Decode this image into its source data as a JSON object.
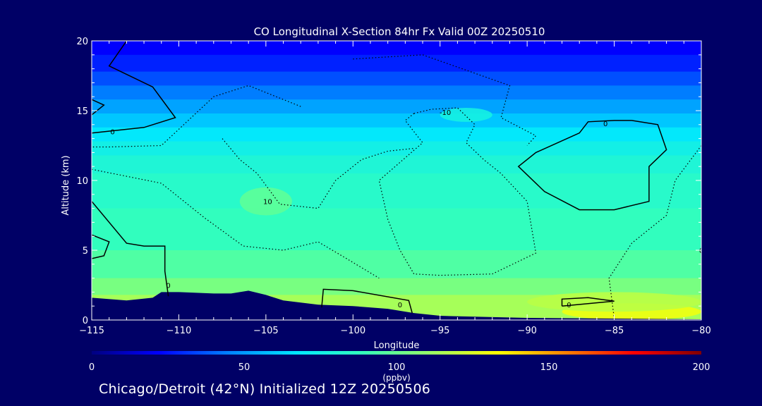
{
  "chart_data": {
    "type": "heatmap",
    "title": "CO Longitudinal X-Section 84hr  Fx Valid 00Z 20250510",
    "xlabel": "Longitude",
    "ylabel": "Altitude (km)",
    "xlim": [
      -115,
      -80
    ],
    "ylim": [
      0,
      20
    ],
    "x_ticks": [
      -115,
      -110,
      -105,
      -100,
      -95,
      -90,
      -85,
      -80
    ],
    "x_tick_labels": [
      "−115",
      "−110",
      "−105",
      "−100",
      "−95",
      "−90",
      "−85",
      "−80"
    ],
    "y_ticks": [
      0,
      5,
      10,
      15,
      20
    ],
    "y_tick_labels": [
      "0",
      "5",
      "10",
      "15",
      "20"
    ],
    "colorbar": {
      "min": 0,
      "max": 200,
      "ticks": [
        0,
        50,
        100,
        150,
        200
      ],
      "tick_labels": [
        "0",
        "50",
        "100",
        "150",
        "200"
      ],
      "unit": "(ppbv)",
      "colors": [
        "#000080",
        "#0000ff",
        "#0080ff",
        "#00e6ff",
        "#33ffbb",
        "#99ff66",
        "#ffff00",
        "#ff8000",
        "#ff0000",
        "#800000"
      ]
    },
    "co_rows": [
      {
        "alt": [
          19,
          20
        ],
        "co": 22
      },
      {
        "alt": [
          17.8,
          19
        ],
        "co": 28
      },
      {
        "alt": [
          16.8,
          17.8
        ],
        "co": 36
      },
      {
        "alt": [
          15.8,
          16.8
        ],
        "co": 44
      },
      {
        "alt": [
          14.8,
          15.8
        ],
        "co": 52
      },
      {
        "alt": [
          13.8,
          14.8
        ],
        "co": 60
      },
      {
        "alt": [
          12.8,
          13.8
        ],
        "co": 68
      },
      {
        "alt": [
          11.8,
          12.8
        ],
        "co": 75
      },
      {
        "alt": [
          10.5,
          11.8
        ],
        "co": 80
      },
      {
        "alt": [
          8,
          10.5
        ],
        "co": 84
      },
      {
        "alt": [
          5,
          8
        ],
        "co": 88
      },
      {
        "alt": [
          3,
          5
        ],
        "co": 95
      },
      {
        "alt": [
          1.8,
          3
        ],
        "co": 104
      },
      {
        "alt": [
          0,
          1.8
        ],
        "co": 114
      }
    ],
    "co_patches": [
      {
        "lon": [
          -106.5,
          -103.5
        ],
        "alt": [
          7.5,
          9.5
        ],
        "co": 98
      },
      {
        "lon": [
          -95,
          -92
        ],
        "alt": [
          14.2,
          15.2
        ],
        "co": 76
      },
      {
        "lon": [
          -88,
          -80
        ],
        "alt": [
          0,
          1.2
        ],
        "co": 130
      },
      {
        "lon": [
          -90,
          -80
        ],
        "alt": [
          0.6,
          2
        ],
        "co": 118
      }
    ],
    "terrain_top_km": [
      [
        -115,
        1.6
      ],
      [
        -113,
        1.4
      ],
      [
        -111.5,
        1.6
      ],
      [
        -111,
        2.0
      ],
      [
        -110,
        2.0
      ],
      [
        -108,
        1.9
      ],
      [
        -107,
        1.9
      ],
      [
        -106,
        2.1
      ],
      [
        -105,
        1.8
      ],
      [
        -104,
        1.4
      ],
      [
        -102,
        1.1
      ],
      [
        -100,
        1.0
      ],
      [
        -98,
        0.8
      ],
      [
        -96.5,
        0.5
      ],
      [
        -95,
        0.3
      ],
      [
        -90,
        0.15
      ],
      [
        -85,
        0.1
      ],
      [
        -80,
        0.05
      ]
    ],
    "contours": [
      {
        "level": "0",
        "style": "solid",
        "points": [
          [
            -113,
            20
          ],
          [
            -114,
            18.2
          ],
          [
            -111.5,
            16.7
          ],
          [
            -110.2,
            14.5
          ],
          [
            -112,
            13.8
          ],
          [
            -115,
            13.4
          ]
        ]
      },
      {
        "level": "0",
        "style": "solid",
        "points": [
          [
            -115,
            15.8
          ],
          [
            -114.3,
            15.4
          ],
          [
            -115,
            14.7
          ]
        ]
      },
      {
        "level": "0",
        "style": "solid",
        "points": [
          [
            -115,
            8.5
          ],
          [
            -113,
            5.5
          ],
          [
            -112,
            5.3
          ],
          [
            -110.8,
            5.3
          ],
          [
            -110.8,
            3.5
          ],
          [
            -110.6,
            1.7
          ]
        ]
      },
      {
        "level": "0",
        "style": "solid",
        "points": [
          [
            -115,
            6.1
          ],
          [
            -114,
            5.6
          ],
          [
            -114.3,
            4.6
          ],
          [
            -115,
            4.4
          ]
        ]
      },
      {
        "level": "0",
        "style": "solid",
        "points": [
          [
            -101.8,
            0.9
          ],
          [
            -101.7,
            2.2
          ],
          [
            -100,
            2.1
          ],
          [
            -96.8,
            1.4
          ],
          [
            -96.6,
            0.5
          ]
        ]
      },
      {
        "level": "0",
        "style": "solid",
        "points": [
          [
            -84,
            14.3
          ],
          [
            -82.5,
            14
          ],
          [
            -82,
            12.2
          ],
          [
            -83,
            11
          ],
          [
            -83,
            8.5
          ],
          [
            -85,
            7.9
          ],
          [
            -87,
            7.9
          ],
          [
            -89,
            9.2
          ],
          [
            -90.5,
            11
          ],
          [
            -89.5,
            12
          ],
          [
            -87,
            13.4
          ],
          [
            -86.5,
            14.2
          ],
          [
            -85,
            14.3
          ],
          [
            -84,
            14.3
          ]
        ]
      },
      {
        "level": "0",
        "style": "solid",
        "points": [
          [
            -88,
            1.0
          ],
          [
            -85,
            1.35
          ],
          [
            -86.5,
            1.6
          ],
          [
            -88,
            1.5
          ],
          [
            -88,
            1.0
          ]
        ]
      },
      {
        "level": "-10",
        "style": "dotted",
        "points": [
          [
            -103,
            15.3
          ],
          [
            -106,
            16.8
          ],
          [
            -108,
            16.0
          ],
          [
            -111,
            12.5
          ],
          [
            -114,
            12.4
          ],
          [
            -115,
            12.4
          ]
        ]
      },
      {
        "level": "-10",
        "style": "dotted",
        "points": [
          [
            -100,
            18.7
          ],
          [
            -96,
            19.0
          ],
          [
            -91,
            16.8
          ],
          [
            -91.5,
            14.5
          ],
          [
            -89.5,
            13.2
          ],
          [
            -90,
            12.5
          ]
        ]
      },
      {
        "level": "-10",
        "style": "dotted",
        "points": [
          [
            -96.5,
            14.8
          ],
          [
            -95.5,
            15.1
          ],
          [
            -94,
            15.2
          ],
          [
            -93,
            14.0
          ],
          [
            -93.5,
            12.7
          ],
          [
            -92.5,
            11.5
          ],
          [
            -91.5,
            10.5
          ],
          [
            -90,
            8.5
          ],
          [
            -89.5,
            4.8
          ],
          [
            -92,
            3.3
          ],
          [
            -95,
            3.2
          ],
          [
            -96.5,
            3.3
          ],
          [
            -97.3,
            5.0
          ],
          [
            -98,
            7.2
          ],
          [
            -98.5,
            10.0
          ],
          [
            -96,
            12.7
          ],
          [
            -97,
            14.3
          ],
          [
            -96.5,
            14.8
          ]
        ]
      },
      {
        "level": "-10",
        "style": "dotted",
        "points": [
          [
            -107.5,
            13.0
          ],
          [
            -106.5,
            11.5
          ],
          [
            -105.5,
            10.5
          ],
          [
            -104.2,
            8.3
          ],
          [
            -102,
            8.0
          ],
          [
            -101,
            10.0
          ],
          [
            -99.5,
            11.5
          ],
          [
            -98,
            12.1
          ],
          [
            -96.5,
            12.3
          ]
        ]
      },
      {
        "level": "-10",
        "style": "dotted",
        "points": [
          [
            -115,
            10.8
          ],
          [
            -111,
            9.8
          ],
          [
            -108.5,
            7.3
          ],
          [
            -106.3,
            5.3
          ],
          [
            -104,
            5.0
          ],
          [
            -102,
            5.6
          ],
          [
            -100.5,
            4.5
          ],
          [
            -98.5,
            3.0
          ]
        ]
      },
      {
        "level": "-10",
        "style": "dotted",
        "points": [
          [
            -80,
            12.5
          ],
          [
            -81.5,
            10.0
          ],
          [
            -82,
            7.5
          ],
          [
            -84,
            5.5
          ],
          [
            -85.3,
            3.0
          ],
          [
            -85,
            0.1
          ]
        ]
      }
    ],
    "contour_labels": [
      {
        "text": "0",
        "lon": -113.8,
        "alt": 13.5
      },
      {
        "text": "-10",
        "lon": -94.7,
        "alt": 14.9
      },
      {
        "text": "0",
        "lon": -85.5,
        "alt": 14.1
      },
      {
        "text": "10",
        "lon": -104.9,
        "alt": 8.5
      },
      {
        "text": "0",
        "lon": -110.6,
        "alt": 2.5
      },
      {
        "text": "0",
        "lon": -97.3,
        "alt": 1.1
      },
      {
        "text": "0",
        "lon": -87.6,
        "alt": 1.1
      },
      {
        "text": "0",
        "lon": -80,
        "alt": 5
      }
    ],
    "footer": "Chicago/Detroit (42°N) Initialized 12Z 20250506"
  }
}
